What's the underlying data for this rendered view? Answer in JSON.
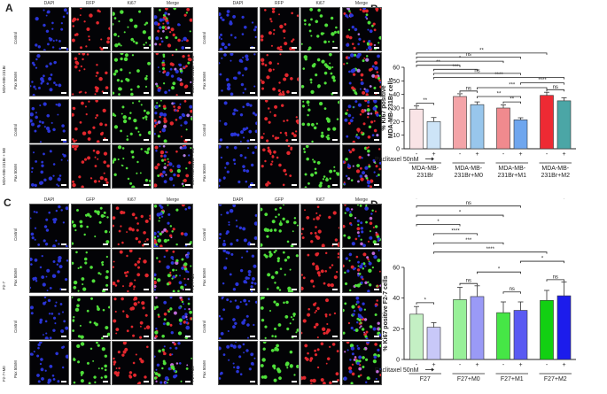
{
  "panel_letters": [
    "A",
    "B",
    "C",
    "D"
  ],
  "micro_panels": [
    {
      "letter_index": 0,
      "channels": [
        "DAPI",
        "RFP",
        "Ki67",
        "Merge"
      ],
      "groups": [
        "MDA-MB-231Br",
        "MDA-MB-231Br + M0"
      ],
      "rows": [
        "Control",
        "Pax 50nM"
      ],
      "colors": [
        "#2a35d8",
        "#e3272d",
        "#4fe03a",
        "#b07ce0"
      ]
    },
    {
      "letter_index": 0,
      "channels": [
        "DAPI",
        "RFP",
        "Ki67",
        "Merge"
      ],
      "groups": [
        "MDA-MB-231Br + M1",
        "MDA-MB-231Br + M2"
      ],
      "rows": [
        "Control",
        "Pax 50nM"
      ],
      "colors": [
        "#2a35d8",
        "#e3272d",
        "#4fe03a",
        "#b07ce0"
      ]
    },
    {
      "letter_index": 2,
      "channels": [
        "DAPI",
        "GFP",
        "Ki67",
        "Merge"
      ],
      "groups": [
        "F2-7",
        "F2-7+M0"
      ],
      "rows": [
        "Control",
        "Pax 50nM"
      ],
      "colors": [
        "#2a35d8",
        "#4fe03a",
        "#e3272d",
        "#c06ad8"
      ]
    },
    {
      "letter_index": 2,
      "channels": [
        "DAPI",
        "GFP",
        "Ki67",
        "Merge"
      ],
      "groups": [
        "F2-7+M1",
        "F2-7+M2"
      ],
      "rows": [
        "Control",
        "Pax 50nM"
      ],
      "colors": [
        "#2a35d8",
        "#4fe03a",
        "#e3272d",
        "#c06ad8"
      ]
    }
  ],
  "chart_data": [
    {
      "type": "bar",
      "panel": "B",
      "ylabel": "% Ki67 positive MDA-MB-231Br cells",
      "ylim": [
        0,
        60
      ],
      "yticks": [
        0,
        10,
        20,
        30,
        40,
        50,
        60
      ],
      "treatment_label": "Paclitaxel 50nM",
      "treatment_signs": [
        "-",
        "+",
        "-",
        "+",
        "-",
        "+",
        "-",
        "+"
      ],
      "groups": [
        "MDA-MB-231Br",
        "MDA-MB-231Br+M0",
        "MDA-MB-231Br+M1",
        "MDA-MB-231Br+M2"
      ],
      "group_label_lines": [
        [
          "MDA-MB-",
          "231Br"
        ],
        [
          "MDA-MB-",
          "231Br+M0"
        ],
        [
          "MDA-MB-",
          "231Br+M1"
        ],
        [
          "MDA-MB-",
          "231Br+M2"
        ]
      ],
      "values": [
        29.2,
        20.0,
        38.5,
        32.5,
        30.0,
        21.3,
        39.3,
        35.3
      ],
      "errors": [
        2.3,
        3.0,
        2.0,
        2.0,
        2.3,
        1.5,
        2.3,
        2.3
      ],
      "bar_fill": [
        "#f9e4e6",
        "#cde4f7",
        "#f4a4a8",
        "#98c6ec",
        "#f08a8e",
        "#6fa6ee",
        "#ee2a33",
        "#4ba6a6"
      ],
      "brackets": [
        {
          "x1": 0,
          "x2": 1,
          "y": 33.5,
          "label": "**"
        },
        {
          "x1": 2,
          "x2": 3,
          "y": 42.5,
          "label": "ns"
        },
        {
          "x1": 4,
          "x2": 5,
          "y": 34.5,
          "label": "**"
        },
        {
          "x1": 6,
          "x2": 7,
          "y": 43.5,
          "label": "ns"
        },
        {
          "x1": 3,
          "x2": 5,
          "y": 38.5,
          "label": "**"
        },
        {
          "x1": 3,
          "x2": 6,
          "y": 45.0,
          "label": "***"
        },
        {
          "x1": 5,
          "x2": 7,
          "y": 48.5,
          "label": "****"
        },
        {
          "x1": 1,
          "x2": 7,
          "y": 52.5,
          "label": "****"
        },
        {
          "x1": 1,
          "x2": 5,
          "y": 55.5,
          "label": "ns"
        },
        {
          "x1": 1,
          "x2": 3,
          "y": 58.5,
          "label": "***"
        },
        {
          "x1": 0,
          "x2": 2,
          "y": 61.5,
          "label": "**"
        },
        {
          "x1": 0,
          "x2": 4,
          "y": 64.5,
          "label": "*"
        },
        {
          "x1": 0,
          "x2": 5,
          "y": 67.5,
          "label": "ns"
        },
        {
          "x1": 0,
          "x2": 6,
          "y": 70.5,
          "label": "**"
        }
      ]
    },
    {
      "type": "bar",
      "panel": "D",
      "ylabel": "% Ki67 positive F2-7 cells",
      "ylim": [
        0,
        60
      ],
      "yticks": [
        0,
        20,
        40,
        60
      ],
      "treatment_label": "Paclitaxel 50nM",
      "treatment_signs": [
        "-",
        "+",
        "-",
        "+",
        "-",
        "+",
        "-",
        "+"
      ],
      "groups": [
        "F27",
        "F27+M0",
        "F27+M1",
        "F27+M2"
      ],
      "group_label_lines": [
        [
          "F27"
        ],
        [
          "F27+M0"
        ],
        [
          "F27+M1"
        ],
        [
          "F27+M2"
        ]
      ],
      "values": [
        29.5,
        21.0,
        39.0,
        41.0,
        30.5,
        32.0,
        38.5,
        41.5
      ],
      "errors": [
        5.0,
        3.0,
        8.0,
        7.0,
        7.0,
        5.5,
        6.5,
        9.0
      ],
      "bar_fill": [
        "#c4f0c4",
        "#c8c8f8",
        "#98f098",
        "#9a9af6",
        "#46e646",
        "#5a5af2",
        "#12d012",
        "#1c1cec"
      ],
      "brackets": [
        {
          "x1": 0,
          "x2": 1,
          "y": 37.0,
          "label": "*"
        },
        {
          "x1": 2,
          "x2": 3,
          "y": 49.5,
          "label": "ns"
        },
        {
          "x1": 4,
          "x2": 5,
          "y": 44.0,
          "label": "ns"
        },
        {
          "x1": 6,
          "x2": 7,
          "y": 52.0,
          "label": "ns"
        },
        {
          "x1": 3,
          "x2": 5,
          "y": 57.0,
          "label": "*"
        },
        {
          "x1": 5,
          "x2": 7,
          "y": 64.0,
          "label": "*"
        },
        {
          "x1": 1,
          "x2": 6,
          "y": 70.0,
          "label": "****"
        },
        {
          "x1": 1,
          "x2": 4,
          "y": 76.0,
          "label": "***"
        },
        {
          "x1": 1,
          "x2": 3,
          "y": 82.0,
          "label": "****"
        },
        {
          "x1": 0,
          "x2": 2,
          "y": 88.0,
          "label": "*"
        },
        {
          "x1": 0,
          "x2": 4,
          "y": 94.0,
          "label": "*"
        },
        {
          "x1": 0,
          "x2": 5,
          "y": 100.0,
          "label": "ns"
        },
        {
          "x1": 0,
          "x2": 7,
          "y": 106.0,
          "label": "*"
        }
      ]
    }
  ]
}
